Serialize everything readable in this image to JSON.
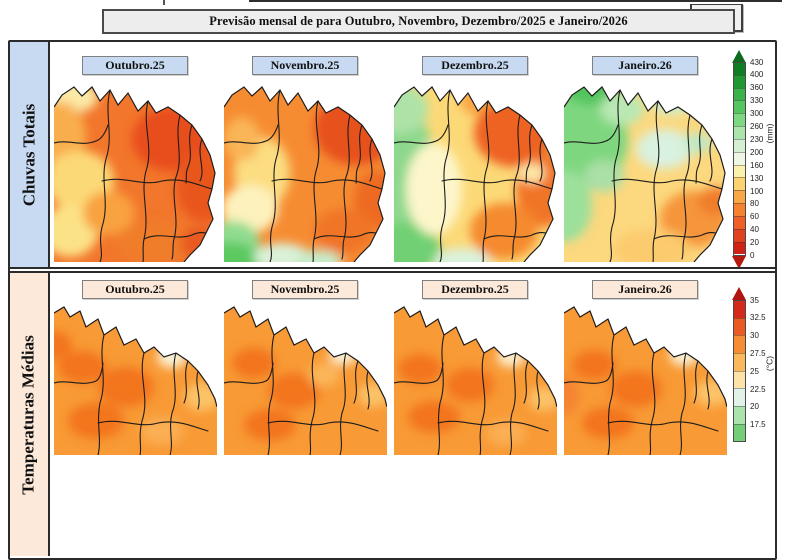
{
  "title": "Previsão mensal de para Outubro, Novembro, Dezembro/2025 e Janeiro/2026",
  "rows": [
    {
      "sidebar_label": "Chuvas Totais",
      "accent_bg": "#c7daf2",
      "months": [
        "Outubro.25",
        "Novembro.25",
        "Dezembro.25",
        "Janeiro.26"
      ],
      "colorbar": {
        "unit": "(mm)",
        "ticks": [
          "430",
          "400",
          "360",
          "330",
          "300",
          "260",
          "230",
          "200",
          "160",
          "130",
          "100",
          "80",
          "60",
          "40",
          "20",
          "0"
        ],
        "segments": [
          "#0f7d24",
          "#219733",
          "#38b249",
          "#55c55f",
          "#7ed781",
          "#abe5ab",
          "#d4efd2",
          "#eef7e4",
          "#fcf0ae",
          "#fdd271",
          "#f9a646",
          "#f5822e",
          "#ee6026",
          "#e2411f",
          "#cf2318"
        ],
        "arrow_top": "#0a6a1d",
        "arrow_bottom": "#b51a10"
      },
      "maps": [
        {
          "base": "#f2762b",
          "blobs": [
            [
              20,
              16,
              24,
              16,
              "#fbe9a6"
            ],
            [
              6,
              55,
              26,
              34,
              "#f9ae4e"
            ],
            [
              26,
              100,
              34,
              30,
              "#fcd977"
            ],
            [
              16,
              150,
              28,
              26,
              "#fce287"
            ],
            [
              55,
              132,
              26,
              22,
              "#f9a240"
            ],
            [
              118,
              58,
              40,
              32,
              "#e84e1d"
            ],
            [
              150,
              105,
              28,
              36,
              "#e9561f"
            ],
            [
              100,
              162,
              38,
              22,
              "#f07d2b"
            ],
            [
              146,
              162,
              20,
              16,
              "#e85a20"
            ]
          ]
        },
        {
          "base": "#f68c32",
          "blobs": [
            [
              132,
              48,
              42,
              36,
              "#e7511d"
            ],
            [
              154,
              118,
              24,
              28,
              "#ee6a24"
            ],
            [
              38,
              92,
              28,
              36,
              "#fcdd81"
            ],
            [
              26,
              128,
              28,
              24,
              "#fdf2bd"
            ],
            [
              18,
              58,
              18,
              22,
              "#f9b556"
            ],
            [
              120,
              150,
              30,
              22,
              "#f07526"
            ],
            [
              8,
              162,
              28,
              22,
              "#90dc90"
            ],
            [
              4,
              181,
              34,
              20,
              "#5cc960"
            ],
            [
              58,
              176,
              28,
              14,
              "#daf2da"
            ],
            [
              94,
              181,
              24,
              12,
              "#c7ecca"
            ]
          ]
        },
        {
          "base": "#fcd977",
          "blobs": [
            [
              0,
              85,
              40,
              65,
              "#8ed88d"
            ],
            [
              8,
              168,
              38,
              26,
              "#70d073"
            ],
            [
              6,
              28,
              28,
              24,
              "#aee3a8"
            ],
            [
              40,
              108,
              28,
              46,
              "#fdf6cb"
            ],
            [
              90,
              20,
              24,
              16,
              "#f9a644"
            ],
            [
              120,
              52,
              40,
              34,
              "#ee6222"
            ],
            [
              150,
              108,
              28,
              38,
              "#f17426"
            ],
            [
              110,
              150,
              34,
              28,
              "#f58a2e"
            ],
            [
              138,
              92,
              13,
              10,
              "#fde8a8"
            ],
            [
              68,
              181,
              28,
              14,
              "#daf2dd"
            ]
          ]
        },
        {
          "base": "#fcd87e",
          "blobs": [
            [
              22,
              58,
              42,
              50,
              "#7ed77f"
            ],
            [
              28,
              8,
              28,
              16,
              "#53c45c"
            ],
            [
              0,
              125,
              28,
              36,
              "#9ce09b"
            ],
            [
              58,
              28,
              22,
              16,
              "#b9e8b4"
            ],
            [
              108,
              22,
              20,
              12,
              "#cfeecb"
            ],
            [
              148,
              28,
              16,
              12,
              "#a8e3a8"
            ],
            [
              100,
              68,
              28,
              20,
              "#d9f1df"
            ],
            [
              134,
              62,
              14,
              10,
              "#bde9c6"
            ],
            [
              40,
              95,
              20,
              16,
              "#aadfa6"
            ],
            [
              130,
              138,
              34,
              28,
              "#f6953b"
            ],
            [
              152,
              120,
              18,
              14,
              "#f07d2b"
            ],
            [
              88,
              168,
              38,
              20,
              "#fccb6e"
            ]
          ]
        }
      ]
    },
    {
      "sidebar_label": "Temperaturas Médias",
      "accent_bg": "#fde9d9",
      "months": [
        "Outubro.25",
        "Novembro.25",
        "Dezembro.25",
        "Janeiro.26"
      ],
      "colorbar": {
        "unit": "(°C)",
        "ticks": [
          "35",
          "32.5",
          "30",
          "27.5",
          "25",
          "22.5",
          "20",
          "17.5"
        ],
        "segments": [
          "#d42a1b",
          "#ea5a24",
          "#f68c33",
          "#fbb95c",
          "#fde3a8",
          "#e3f2e9",
          "#abe2ae",
          "#74ce77"
        ],
        "arrow_top": "#b01510",
        "arrow_bottom": null
      },
      "maps": [
        {
          "base": "#f89a35",
          "blobs": [
            [
              28,
              62,
              24,
              16,
              "#f3741f"
            ],
            [
              72,
              82,
              28,
              20,
              "#f3741f"
            ],
            [
              0,
              40,
              18,
              14,
              "#f3741f"
            ],
            [
              118,
              52,
              15,
              11,
              "#fdedcc"
            ],
            [
              118,
              52,
              6,
              4,
              "#eef8ea"
            ],
            [
              148,
              92,
              18,
              14,
              "#fcc268"
            ],
            [
              42,
              116,
              28,
              18,
              "#f3741f"
            ],
            [
              108,
              126,
              22,
              14,
              "#fbae52"
            ]
          ]
        },
        {
          "base": "#f89a35",
          "blobs": [
            [
              30,
              58,
              22,
              15,
              "#f3741f"
            ],
            [
              70,
              86,
              26,
              18,
              "#f3741f"
            ],
            [
              119,
              50,
              14,
              10,
              "#fdedcc"
            ],
            [
              119,
              50,
              5,
              4,
              "#f2faf0"
            ],
            [
              150,
              90,
              16,
              12,
              "#fcc268"
            ],
            [
              46,
              120,
              26,
              16,
              "#f3741f"
            ],
            [
              100,
              70,
              16,
              12,
              "#fbb659"
            ]
          ]
        },
        {
          "base": "#f89a35",
          "blobs": [
            [
              26,
              64,
              22,
              15,
              "#f3741f"
            ],
            [
              76,
              80,
              24,
              17,
              "#f3741f"
            ],
            [
              117,
              52,
              14,
              10,
              "#fdedcc"
            ],
            [
              150,
              94,
              16,
              12,
              "#fcc268"
            ],
            [
              40,
              112,
              26,
              16,
              "#f3741f"
            ],
            [
              112,
              128,
              20,
              13,
              "#fbae52"
            ]
          ]
        },
        {
          "base": "#f89a35",
          "blobs": [
            [
              30,
              60,
              22,
              15,
              "#f3741f"
            ],
            [
              72,
              84,
              26,
              18,
              "#f3741f"
            ],
            [
              120,
              50,
              15,
              11,
              "#fdeccb"
            ],
            [
              120,
              50,
              6,
              4,
              "#eef8ea"
            ],
            [
              148,
              88,
              18,
              13,
              "#fcc268"
            ],
            [
              44,
              118,
              26,
              16,
              "#f3741f"
            ],
            [
              0,
              90,
              16,
              20,
              "#f58430"
            ]
          ]
        }
      ]
    }
  ]
}
